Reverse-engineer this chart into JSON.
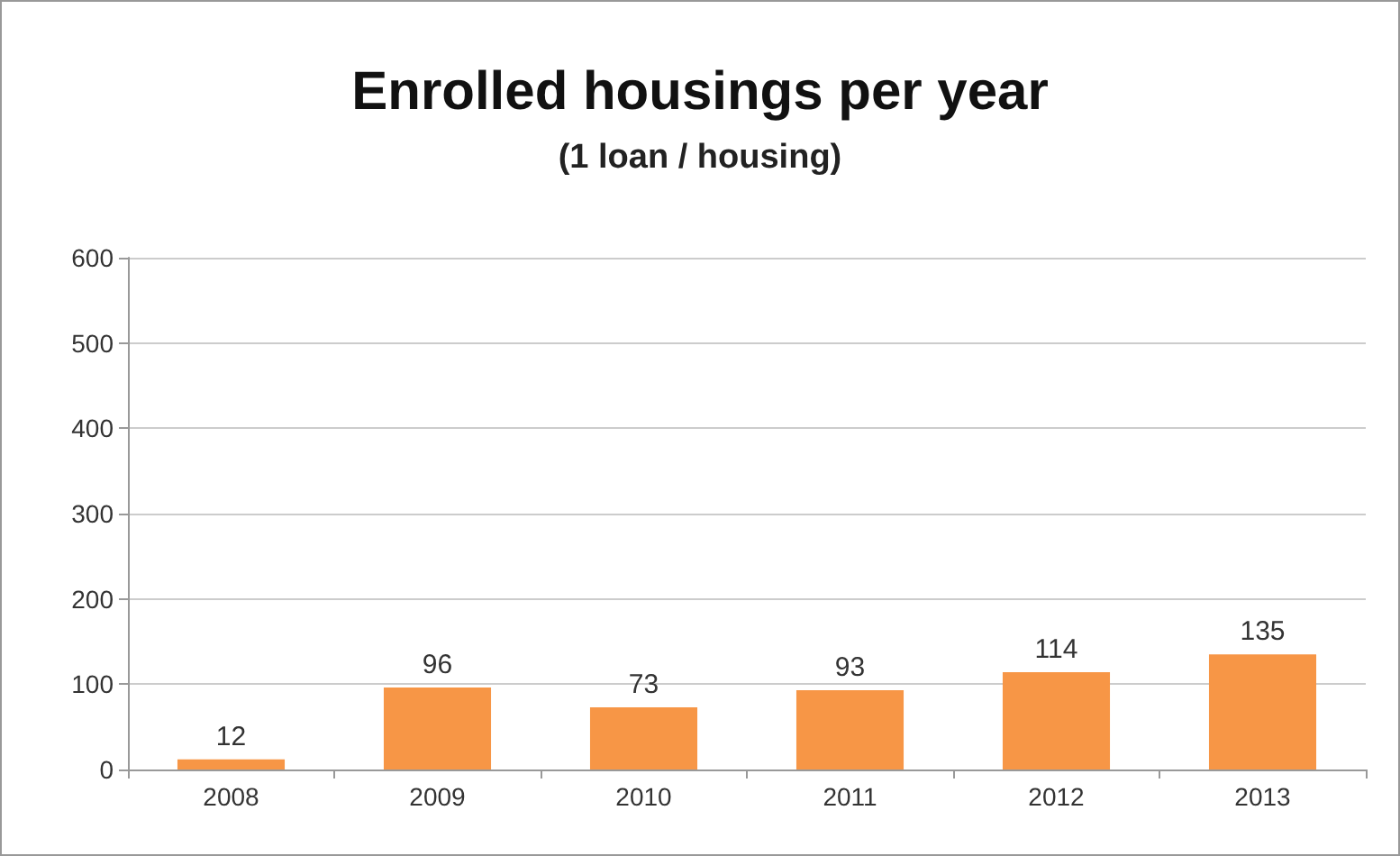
{
  "chart_data": {
    "type": "bar",
    "title": "Enrolled housings per year",
    "subtitle": "(1 loan / housing)",
    "categories": [
      "2008",
      "2009",
      "2010",
      "2011",
      "2012",
      "2013"
    ],
    "values": [
      12,
      96,
      73,
      93,
      114,
      135
    ],
    "color": "#f79646",
    "ylim": [
      0,
      600
    ],
    "yticks": [
      0,
      100,
      200,
      300,
      400,
      500,
      600
    ],
    "grid": "y",
    "data_labels": true
  }
}
